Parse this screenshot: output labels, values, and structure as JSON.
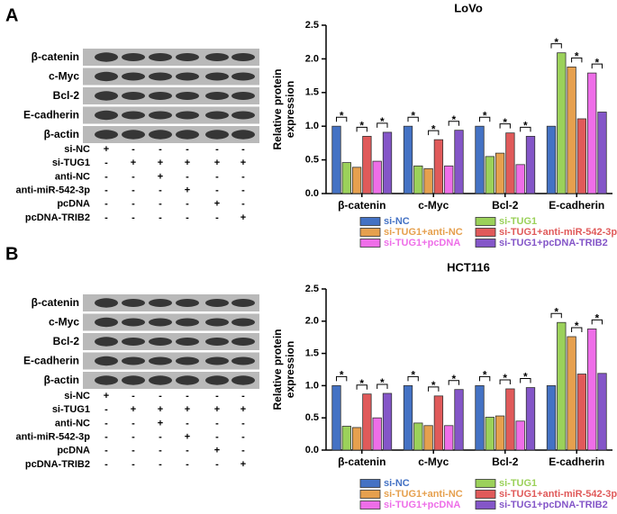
{
  "panels": [
    {
      "letter": "A",
      "blot_labels": [
        "β-catenin",
        "c-Myc",
        "Bcl-2",
        "E-cadherin",
        "β-actin"
      ],
      "conditions": [
        {
          "label": "si-NC",
          "marks": [
            "+",
            "-",
            "-",
            "-",
            "-",
            "-"
          ]
        },
        {
          "label": "si-TUG1",
          "marks": [
            "-",
            "+",
            "+",
            "+",
            "+",
            "+"
          ]
        },
        {
          "label": "anti-NC",
          "marks": [
            "-",
            "-",
            "+",
            "-",
            "-",
            "-"
          ]
        },
        {
          "label": "anti-miR-542-3p",
          "marks": [
            "-",
            "-",
            "-",
            "+",
            "-",
            "-"
          ]
        },
        {
          "label": "pcDNA",
          "marks": [
            "-",
            "-",
            "-",
            "-",
            "+",
            "-"
          ]
        },
        {
          "label": "pcDNA-TRIB2",
          "marks": [
            "-",
            "-",
            "-",
            "-",
            "-",
            "+"
          ]
        }
      ]
    },
    {
      "letter": "B",
      "blot_labels": [
        "β-catenin",
        "c-Myc",
        "Bcl-2",
        "E-cadherin",
        "β-actin"
      ],
      "conditions": [
        {
          "label": "si-NC",
          "marks": [
            "+",
            "-",
            "-",
            "-",
            "-",
            "-"
          ]
        },
        {
          "label": "si-TUG1",
          "marks": [
            "-",
            "+",
            "+",
            "+",
            "+",
            "+"
          ]
        },
        {
          "label": "anti-NC",
          "marks": [
            "-",
            "-",
            "+",
            "-",
            "-",
            "-"
          ]
        },
        {
          "label": "anti-miR-542-3p",
          "marks": [
            "-",
            "-",
            "-",
            "+",
            "-",
            "-"
          ]
        },
        {
          "label": "pcDNA",
          "marks": [
            "-",
            "-",
            "-",
            "-",
            "+",
            "-"
          ]
        },
        {
          "label": "pcDNA-TRIB2",
          "marks": [
            "-",
            "-",
            "-",
            "-",
            "-",
            "+"
          ]
        }
      ]
    }
  ],
  "chart_data": [
    {
      "type": "bar",
      "title": "LoVo",
      "y_label": "Relative protein expression",
      "significance_label": "*",
      "categories": [
        "β-catenin",
        "c-Myc",
        "Bcl-2",
        "E-cadherin"
      ],
      "ylim": [
        0,
        2.5
      ],
      "yticks": [
        {
          "value": 0,
          "label": "0.0"
        },
        {
          "value": 0.5,
          "label": "0.5"
        },
        {
          "value": 1,
          "label": "1.0"
        },
        {
          "value": 1.5,
          "label": "1.5"
        },
        {
          "value": 2,
          "label": "2.0"
        },
        {
          "value": 2.5,
          "label": "2.5"
        }
      ],
      "series": [
        {
          "name": "si-NC",
          "color": "#4472c4",
          "values": [
            1.0,
            1.0,
            1.0,
            1.0
          ]
        },
        {
          "name": "si-TUG1",
          "color": "#9bd15a",
          "values": [
            0.46,
            0.41,
            0.55,
            2.09
          ]
        },
        {
          "name": "si-TUG1+anti-NC",
          "color": "#e6a04e",
          "values": [
            0.39,
            0.37,
            0.6,
            1.88
          ]
        },
        {
          "name": "si-TUG1+anti-miR-542-3p",
          "color": "#e05a5a",
          "values": [
            0.85,
            0.8,
            0.9,
            1.11
          ]
        },
        {
          "name": "si-TUG1+pcDNA",
          "color": "#ee6ee8",
          "values": [
            0.48,
            0.41,
            0.43,
            1.79
          ]
        },
        {
          "name": "si-TUG1+pcDNA-TRIB2",
          "color": "#8456c8",
          "values": [
            0.91,
            0.94,
            0.85,
            1.21
          ]
        }
      ]
    },
    {
      "type": "bar",
      "title": "HCT116",
      "y_label": "Relative protein expression",
      "significance_label": "*",
      "categories": [
        "β-catenin",
        "c-Myc",
        "Bcl-2",
        "E-cadherin"
      ],
      "ylim": [
        0,
        2.5
      ],
      "yticks": [
        {
          "value": 0,
          "label": "0.0"
        },
        {
          "value": 0.5,
          "label": "0.5"
        },
        {
          "value": 1,
          "label": "1.0"
        },
        {
          "value": 1.5,
          "label": "1.5"
        },
        {
          "value": 2,
          "label": "2.0"
        },
        {
          "value": 2.5,
          "label": "2.5"
        }
      ],
      "series": [
        {
          "name": "si-NC",
          "color": "#4472c4",
          "values": [
            1.0,
            1.0,
            1.0,
            1.0
          ]
        },
        {
          "name": "si-TUG1",
          "color": "#9bd15a",
          "values": [
            0.37,
            0.42,
            0.51,
            1.98
          ]
        },
        {
          "name": "si-TUG1+anti-NC",
          "color": "#e6a04e",
          "values": [
            0.35,
            0.38,
            0.53,
            1.76
          ]
        },
        {
          "name": "si-TUG1+anti-miR-542-3p",
          "color": "#e05a5a",
          "values": [
            0.87,
            0.84,
            0.95,
            1.18
          ]
        },
        {
          "name": "si-TUG1+pcDNA",
          "color": "#ee6ee8",
          "values": [
            0.5,
            0.38,
            0.45,
            1.88
          ]
        },
        {
          "name": "si-TUG1+pcDNA-TRIB2",
          "color": "#8456c8",
          "values": [
            0.88,
            0.94,
            0.97,
            1.19
          ]
        }
      ]
    }
  ]
}
